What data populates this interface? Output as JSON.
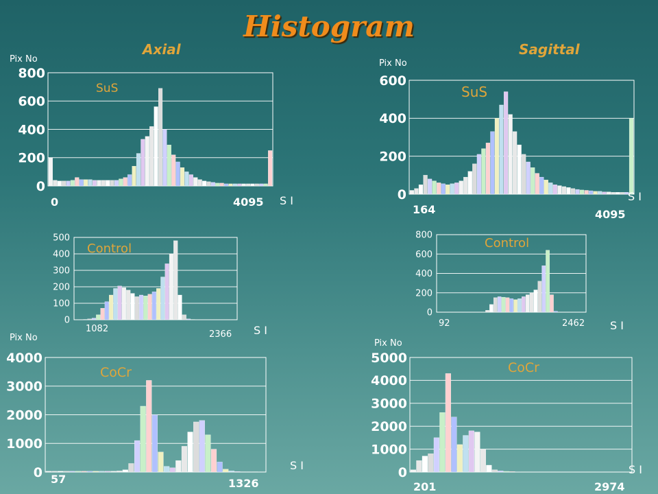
{
  "page": {
    "title": "Histogram",
    "sections": [
      "Axial",
      "Sagittal"
    ]
  },
  "colors": {
    "title": "#f08c1c",
    "section_title": "#e0a53a",
    "series_label": "#e0a53a",
    "text": "#ffffff",
    "bars": "#f4f4f4"
  },
  "chart_data": [
    {
      "type": "bar",
      "section": "Axial",
      "label": "SuS",
      "ylabel": "Pix No",
      "xlabel": "S I",
      "ylim": [
        0,
        800
      ],
      "yticks": [
        0,
        200,
        400,
        600,
        800
      ],
      "xticks": [
        "0",
        "4095"
      ],
      "x": [
        0,
        82,
        164,
        246,
        328,
        410,
        491,
        573,
        655,
        737,
        819,
        901,
        983,
        1065,
        1147,
        1229,
        1310,
        1392,
        1474,
        1556,
        1638,
        1720,
        1802,
        1884,
        1966,
        2048,
        2129,
        2211,
        2293,
        2375,
        2457,
        2539,
        2621,
        2703,
        2785,
        2867,
        2948,
        3030,
        3112,
        3194,
        3276,
        3358,
        3440,
        3522,
        3604,
        3686,
        3767,
        3849,
        3931,
        4013,
        4095
      ],
      "values": [
        200,
        40,
        35,
        35,
        35,
        40,
        60,
        45,
        45,
        45,
        40,
        40,
        40,
        40,
        40,
        40,
        50,
        60,
        80,
        140,
        230,
        330,
        350,
        420,
        560,
        690,
        400,
        290,
        220,
        170,
        130,
        100,
        80,
        60,
        45,
        35,
        30,
        25,
        20,
        20,
        15,
        15,
        15,
        15,
        15,
        15,
        15,
        15,
        15,
        15,
        250
      ]
    },
    {
      "type": "bar",
      "section": "Sagittal",
      "label": "SuS",
      "ylabel": "Pix No",
      "xlabel": "S I",
      "ylim": [
        0,
        600
      ],
      "yticks": [
        0,
        200,
        400,
        600
      ],
      "xticks": [
        "164",
        "4095"
      ],
      "x": [
        164,
        244,
        324,
        405,
        485,
        565,
        645,
        725,
        805,
        886,
        966,
        1046,
        1126,
        1206,
        1286,
        1367,
        1447,
        1527,
        1607,
        1687,
        1767,
        1848,
        1928,
        2008,
        2088,
        2168,
        2248,
        2328,
        2409,
        2489,
        2569,
        2649,
        2729,
        2810,
        2890,
        2970,
        3050,
        3130,
        3210,
        3291,
        3371,
        3451,
        3531,
        3611,
        3691,
        3772,
        3852,
        3932,
        4012,
        4095
      ],
      "values": [
        20,
        30,
        50,
        100,
        80,
        70,
        60,
        55,
        50,
        55,
        60,
        70,
        90,
        120,
        160,
        210,
        240,
        270,
        330,
        400,
        470,
        540,
        420,
        330,
        260,
        210,
        170,
        140,
        110,
        90,
        75,
        60,
        50,
        45,
        40,
        35,
        30,
        25,
        22,
        20,
        18,
        15,
        15,
        12,
        12,
        10,
        10,
        10,
        10,
        400
      ]
    },
    {
      "type": "bar",
      "section": "Axial",
      "label": "Control",
      "ylim": [
        0,
        500
      ],
      "yticks": [
        0,
        100,
        200,
        300,
        400,
        500
      ],
      "xticks": [
        "1082",
        "2366"
      ],
      "x": [
        1082,
        1117,
        1152,
        1187,
        1222,
        1257,
        1292,
        1327,
        1362,
        1397,
        1432,
        1467,
        1502,
        1537,
        1572,
        1607,
        1642,
        1677,
        1712,
        1747,
        1782,
        1817,
        1852,
        1887,
        1922,
        1957,
        1992,
        2027,
        2062,
        2097,
        2132,
        2167,
        2202,
        2237,
        2272,
        2307,
        2366
      ],
      "values": [
        0,
        0,
        2,
        5,
        10,
        30,
        70,
        110,
        150,
        190,
        205,
        195,
        180,
        160,
        140,
        150,
        145,
        155,
        170,
        190,
        260,
        340,
        400,
        480,
        150,
        30,
        5,
        2,
        0,
        0,
        0,
        0,
        0,
        0,
        0,
        0,
        0
      ],
      "xlabel": "S I"
    },
    {
      "type": "bar",
      "section": "Sagittal",
      "label": "Control",
      "ylim": [
        0,
        800
      ],
      "yticks": [
        0,
        200,
        400,
        600,
        800
      ],
      "xticks": [
        "92",
        "2462"
      ],
      "x": [
        92,
        158,
        224,
        290,
        356,
        422,
        488,
        554,
        620,
        686,
        752,
        818,
        884,
        950,
        1016,
        1082,
        1148,
        1214,
        1280,
        1346,
        1412,
        1478,
        1544,
        1610,
        1676,
        1742,
        1808,
        1874,
        1940,
        2006,
        2072,
        2138,
        2204,
        2270,
        2336,
        2402,
        2462
      ],
      "values": [
        0,
        0,
        0,
        0,
        0,
        0,
        0,
        0,
        0,
        0,
        0,
        0,
        20,
        80,
        150,
        160,
        155,
        150,
        140,
        130,
        140,
        160,
        180,
        200,
        230,
        320,
        480,
        640,
        180,
        10,
        0,
        0,
        0,
        0,
        0,
        0,
        0
      ],
      "xlabel": "S I"
    },
    {
      "type": "bar",
      "section": "Axial",
      "label": "CoCr",
      "ylabel": "Pix No",
      "xlabel": "S I",
      "ylim": [
        0,
        4000
      ],
      "yticks": [
        0,
        1000,
        2000,
        3000,
        4000
      ],
      "xticks": [
        "57",
        "1326"
      ],
      "x": [
        57,
        92,
        127,
        162,
        197,
        232,
        267,
        302,
        337,
        372,
        407,
        442,
        477,
        512,
        547,
        582,
        617,
        652,
        687,
        722,
        757,
        792,
        827,
        862,
        897,
        932,
        967,
        1002,
        1037,
        1072,
        1107,
        1142,
        1177,
        1212,
        1247,
        1282,
        1326
      ],
      "values": [
        30,
        30,
        30,
        30,
        30,
        30,
        30,
        30,
        30,
        30,
        30,
        30,
        40,
        80,
        300,
        1100,
        2300,
        3200,
        2000,
        700,
        200,
        150,
        400,
        900,
        1400,
        1750,
        1800,
        1300,
        800,
        350,
        100,
        40,
        20,
        10,
        10,
        10,
        10
      ]
    },
    {
      "type": "bar",
      "section": "Sagittal",
      "label": "CoCr",
      "ylabel": "Pix No",
      "xlabel": "S I",
      "ylim": [
        0,
        5000
      ],
      "yticks": [
        0,
        1000,
        2000,
        3000,
        4000,
        5000
      ],
      "xticks": [
        "201",
        "2974"
      ],
      "x": [
        201,
        276,
        351,
        426,
        501,
        576,
        651,
        726,
        801,
        876,
        951,
        1026,
        1101,
        1176,
        1251,
        1326,
        1401,
        1476,
        1551,
        1626,
        1701,
        1776,
        1851,
        1926,
        2001,
        2076,
        2151,
        2226,
        2301,
        2376,
        2451,
        2526,
        2601,
        2676,
        2751,
        2826,
        2974
      ],
      "values": [
        100,
        500,
        700,
        800,
        1500,
        2600,
        4300,
        2400,
        1200,
        1600,
        1800,
        1750,
        1000,
        300,
        100,
        50,
        30,
        20,
        10,
        10,
        10,
        10,
        10,
        10,
        10,
        10,
        10,
        10,
        10,
        10,
        10,
        10,
        10,
        10,
        10,
        10,
        10
      ]
    }
  ]
}
